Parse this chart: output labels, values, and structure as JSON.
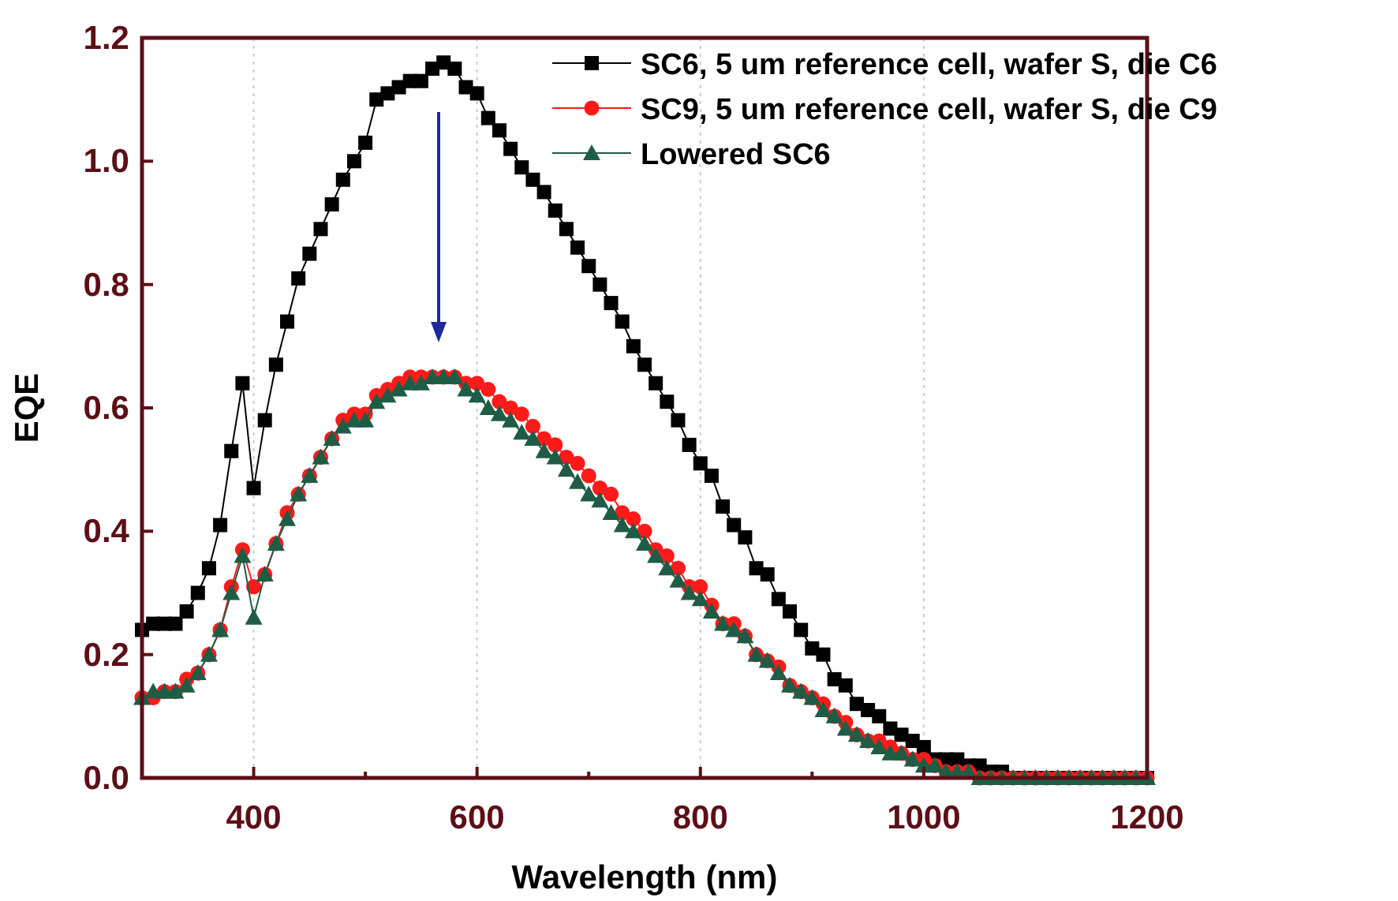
{
  "chart_data": {
    "type": "line",
    "xlabel": "Wavelength (nm)",
    "ylabel": "EQE",
    "x": [
      300,
      310,
      320,
      330,
      340,
      350,
      360,
      370,
      380,
      390,
      400,
      410,
      420,
      430,
      440,
      450,
      460,
      470,
      480,
      490,
      500,
      510,
      520,
      530,
      540,
      550,
      560,
      570,
      580,
      590,
      600,
      610,
      620,
      630,
      640,
      650,
      660,
      670,
      680,
      690,
      700,
      710,
      720,
      730,
      740,
      750,
      760,
      770,
      780,
      790,
      800,
      810,
      820,
      830,
      840,
      850,
      860,
      870,
      880,
      890,
      900,
      910,
      920,
      930,
      940,
      950,
      960,
      970,
      980,
      990,
      1000,
      1010,
      1020,
      1030,
      1040,
      1050,
      1060,
      1070,
      1080,
      1090,
      1100,
      1110,
      1120,
      1130,
      1140,
      1150,
      1160,
      1170,
      1180,
      1190,
      1200
    ],
    "series": [
      {
        "name": "SC6, 5 um reference cell, wafer S, die C6",
        "color": "#000000",
        "marker": "square",
        "values": [
          0.24,
          0.25,
          0.25,
          0.25,
          0.27,
          0.3,
          0.34,
          0.41,
          0.53,
          0.64,
          0.47,
          0.58,
          0.67,
          0.74,
          0.81,
          0.85,
          0.89,
          0.93,
          0.97,
          1.0,
          1.03,
          1.1,
          1.11,
          1.12,
          1.13,
          1.13,
          1.15,
          1.16,
          1.15,
          1.12,
          1.11,
          1.07,
          1.05,
          1.02,
          0.99,
          0.97,
          0.95,
          0.92,
          0.89,
          0.86,
          0.83,
          0.8,
          0.77,
          0.74,
          0.7,
          0.67,
          0.64,
          0.61,
          0.58,
          0.54,
          0.51,
          0.49,
          0.44,
          0.41,
          0.39,
          0.34,
          0.33,
          0.29,
          0.27,
          0.24,
          0.21,
          0.2,
          0.16,
          0.15,
          0.12,
          0.11,
          0.1,
          0.08,
          0.07,
          0.06,
          0.05,
          0.03,
          0.03,
          0.03,
          0.02,
          0.02,
          0.01,
          0.01,
          0,
          0,
          0,
          0,
          0,
          0,
          0,
          0,
          0,
          0,
          0,
          0,
          0
        ]
      },
      {
        "name": "SC9, 5 um reference cell, wafer S, die C9",
        "color": "#ff1a1a",
        "marker": "circle",
        "values": [
          0.13,
          0.13,
          0.14,
          0.14,
          0.16,
          0.17,
          0.2,
          0.24,
          0.31,
          0.37,
          0.31,
          0.33,
          0.38,
          0.43,
          0.46,
          0.49,
          0.52,
          0.55,
          0.58,
          0.59,
          0.59,
          0.62,
          0.63,
          0.64,
          0.65,
          0.65,
          0.65,
          0.65,
          0.65,
          0.64,
          0.64,
          0.63,
          0.61,
          0.6,
          0.59,
          0.57,
          0.55,
          0.54,
          0.52,
          0.51,
          0.49,
          0.47,
          0.46,
          0.43,
          0.42,
          0.4,
          0.37,
          0.36,
          0.34,
          0.31,
          0.31,
          0.28,
          0.25,
          0.25,
          0.23,
          0.2,
          0.19,
          0.18,
          0.15,
          0.14,
          0.13,
          0.12,
          0.1,
          0.09,
          0.07,
          0.06,
          0.06,
          0.05,
          0.04,
          0.03,
          0.03,
          0.02,
          0.01,
          0.01,
          0.01,
          0,
          0,
          0,
          0,
          0,
          0,
          0,
          0,
          0,
          0,
          0,
          0,
          0,
          0,
          0,
          0
        ]
      },
      {
        "name": "Lowered SC6",
        "color": "#1f5c45",
        "marker": "triangle",
        "values": [
          0.13,
          0.14,
          0.14,
          0.14,
          0.15,
          0.17,
          0.2,
          0.24,
          0.3,
          0.36,
          0.26,
          0.33,
          0.38,
          0.42,
          0.46,
          0.49,
          0.52,
          0.55,
          0.57,
          0.58,
          0.58,
          0.61,
          0.62,
          0.63,
          0.64,
          0.64,
          0.65,
          0.65,
          0.65,
          0.63,
          0.62,
          0.6,
          0.59,
          0.58,
          0.56,
          0.55,
          0.53,
          0.52,
          0.5,
          0.48,
          0.46,
          0.45,
          0.43,
          0.41,
          0.4,
          0.38,
          0.36,
          0.34,
          0.32,
          0.3,
          0.29,
          0.27,
          0.25,
          0.24,
          0.23,
          0.2,
          0.19,
          0.17,
          0.15,
          0.14,
          0.13,
          0.11,
          0.1,
          0.08,
          0.07,
          0.06,
          0.05,
          0.04,
          0.04,
          0.03,
          0.02,
          0.02,
          0.01,
          0.01,
          0.01,
          0,
          0,
          0,
          0,
          0,
          0,
          0,
          0,
          0,
          0,
          0,
          0,
          0,
          0,
          0,
          0
        ]
      }
    ],
    "xlim": [
      300,
      1200
    ],
    "xticks": [
      {
        "value": 300,
        "label": null
      },
      400,
      {
        "value": 500,
        "label": null
      },
      600,
      {
        "value": 700,
        "label": null
      },
      800,
      {
        "value": 900,
        "label": null
      },
      1000,
      {
        "value": 1100,
        "label": null
      },
      1200
    ],
    "ylim": [
      0,
      1.2
    ],
    "yticks": [
      {
        "value": 0,
        "label": "0.0"
      },
      {
        "value": 0.2,
        "label": "0.2"
      },
      {
        "value": 0.4,
        "label": "0.4"
      },
      {
        "value": 0.6,
        "label": "0.6"
      },
      {
        "value": 0.8,
        "label": "0.8"
      },
      {
        "value": 1.0,
        "label": "1.0"
      },
      {
        "value": 1.2,
        "label": "1.2"
      }
    ],
    "grid": "x",
    "legend": "top right",
    "line_style": "solid"
  }
}
